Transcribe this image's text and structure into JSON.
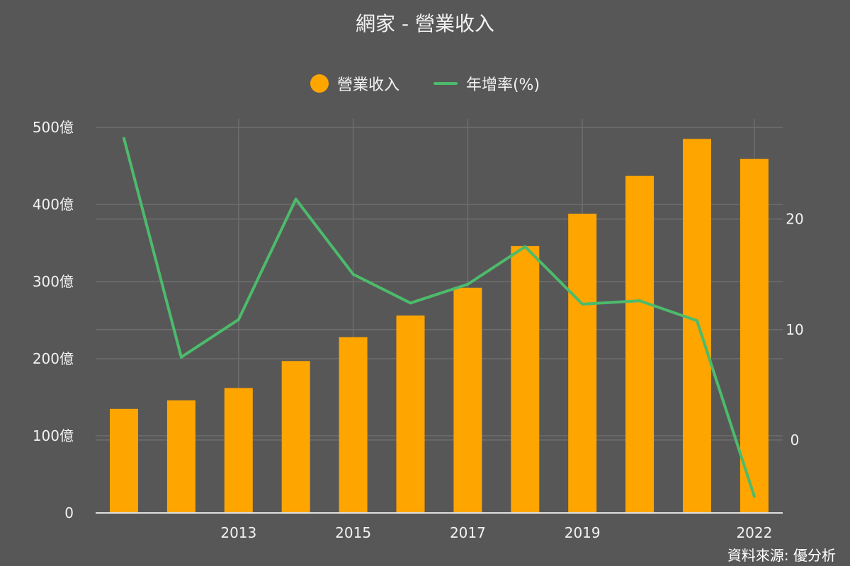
{
  "chart_data": {
    "type": "bar",
    "title": "網家 - 營業收入",
    "source": "資料來源: 優分析",
    "x": [
      2011,
      2012,
      2013,
      2014,
      2015,
      2016,
      2017,
      2018,
      2019,
      2020,
      2021,
      2022
    ],
    "x_tick_labels": [
      "2013",
      "2015",
      "2017",
      "2019",
      "2022"
    ],
    "x_tick_values": [
      2013,
      2015,
      2017,
      2019,
      2022
    ],
    "series": [
      {
        "name": "營業收入",
        "type": "bar",
        "axis": "left",
        "color": "#FFA500",
        "values": [
          135,
          146,
          162,
          197,
          228,
          256,
          292,
          346,
          388,
          437,
          485,
          459
        ]
      },
      {
        "name": "年增率(%)",
        "type": "line",
        "axis": "right",
        "color": "#4CBB6C",
        "values": [
          27.3,
          7.5,
          10.9,
          21.8,
          15.0,
          12.4,
          14.1,
          17.5,
          12.3,
          12.6,
          10.8,
          -5.1
        ]
      }
    ],
    "y_left": {
      "ylim": [
        0,
        500
      ],
      "ticks": [
        0,
        100,
        200,
        300,
        400,
        500
      ],
      "tick_labels": [
        "0",
        "100億",
        "200億",
        "300億",
        "400億",
        "500億"
      ]
    },
    "y_right": {
      "ylim": [
        -6.6,
        28.3
      ],
      "ticks": [
        0,
        10,
        20
      ],
      "tick_labels": [
        "0",
        "10",
        "20"
      ]
    },
    "grid": true,
    "legend_position": "top-center"
  },
  "colors": {
    "background": "#575757",
    "grid": "#6e6e6e",
    "axis": "#e0e0e0"
  }
}
